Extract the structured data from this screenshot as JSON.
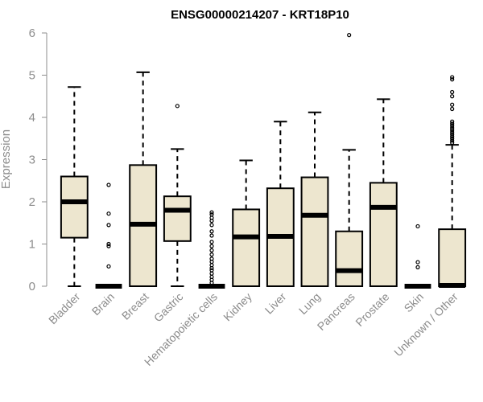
{
  "chart_data": {
    "type": "boxplot",
    "title": "ENSG00000214207 - KRT18P10",
    "ylabel": "Expression",
    "xlabel": "",
    "ylim": [
      0,
      6
    ],
    "yticks": [
      "0",
      "1",
      "2",
      "3",
      "4",
      "5",
      "6"
    ],
    "grid": false,
    "colors": {
      "box_fill": "#ede6cf",
      "stroke": "#000000",
      "axis_text": "#8c8c8c"
    },
    "categories": [
      "Bladder",
      "Brain",
      "Breast",
      "Gastric",
      "Hematopoietic cells",
      "Kidney",
      "Liver",
      "Lung",
      "Pancreas",
      "Prostate",
      "Skin",
      "Unknown / Other"
    ],
    "boxes": [
      {
        "category": "Bladder",
        "min": 0,
        "q1": 1.15,
        "median": 2.0,
        "q3": 2.6,
        "max": 4.72,
        "outliers": []
      },
      {
        "category": "Brain",
        "min": 0,
        "q1": 0,
        "median": 0,
        "q3": 0,
        "max": 0,
        "outliers": [
          2.4,
          1.72,
          1.45,
          1.0,
          0.95,
          0.47
        ]
      },
      {
        "category": "Breast",
        "min": 0,
        "q1": 0,
        "median": 1.47,
        "q3": 2.87,
        "max": 5.07,
        "outliers": []
      },
      {
        "category": "Gastric",
        "min": 0,
        "q1": 1.07,
        "median": 1.8,
        "q3": 2.13,
        "max": 3.25,
        "outliers": [
          4.27
        ]
      },
      {
        "category": "Hematopoietic cells",
        "min": 0,
        "q1": 0,
        "median": 0,
        "q3": 0,
        "max": 0,
        "outliers": [
          1.75,
          1.7,
          1.62,
          1.55,
          1.45,
          1.3,
          1.2,
          1.05,
          0.95,
          0.85,
          0.75,
          0.65,
          0.58,
          0.5,
          0.43,
          0.38,
          0.3,
          0.22,
          0.15,
          0.08
        ]
      },
      {
        "category": "Kidney",
        "min": 0,
        "q1": 0,
        "median": 1.17,
        "q3": 1.82,
        "max": 2.98,
        "outliers": []
      },
      {
        "category": "Liver",
        "min": 0,
        "q1": 0,
        "median": 1.18,
        "q3": 2.32,
        "max": 3.9,
        "outliers": []
      },
      {
        "category": "Lung",
        "min": 0,
        "q1": 0,
        "median": 1.68,
        "q3": 2.58,
        "max": 4.12,
        "outliers": []
      },
      {
        "category": "Pancreas",
        "min": 0,
        "q1": 0,
        "median": 0.37,
        "q3": 1.3,
        "max": 3.23,
        "outliers": [
          5.95
        ]
      },
      {
        "category": "Prostate",
        "min": 0,
        "q1": 0,
        "median": 1.87,
        "q3": 2.45,
        "max": 4.43,
        "outliers": []
      },
      {
        "category": "Skin",
        "min": 0,
        "q1": 0,
        "median": 0,
        "q3": 0,
        "max": 0,
        "outliers": [
          1.42,
          0.57,
          0.45
        ]
      },
      {
        "category": "Unknown / Other",
        "min": 0,
        "q1": 0,
        "median": 0.02,
        "q3": 1.35,
        "max": 3.35,
        "outliers": [
          4.95,
          4.9,
          4.6,
          4.5,
          4.3,
          4.2,
          3.9,
          3.85,
          3.8,
          3.75,
          3.7,
          3.65,
          3.6,
          3.55,
          3.5,
          3.45,
          3.4
        ]
      }
    ]
  }
}
